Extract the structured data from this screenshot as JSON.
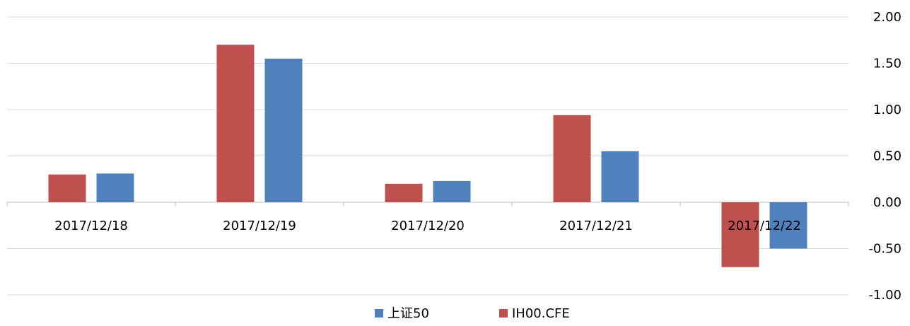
{
  "chart_data": {
    "type": "bar",
    "categories": [
      "2017/12/18",
      "2017/12/19",
      "2017/12/20",
      "2017/12/21",
      "2017/12/22"
    ],
    "series": [
      {
        "name": "上证50",
        "color": "#4f81bd",
        "values": [
          0.31,
          1.55,
          0.23,
          0.55,
          -0.5
        ]
      },
      {
        "name": "IH00.CFE",
        "color": "#c0504d",
        "values": [
          0.3,
          1.7,
          0.2,
          0.94,
          -0.7
        ]
      }
    ],
    "ylim": [
      -1,
      2
    ],
    "yticks": [
      {
        "value": -1,
        "label": "-1.00"
      },
      {
        "value": -0.5,
        "label": "-0.50"
      },
      {
        "value": 0,
        "label": "0.00"
      },
      {
        "value": 0.5,
        "label": "0.50"
      },
      {
        "value": 1,
        "label": "1.00"
      },
      {
        "value": 1.5,
        "label": "1.50"
      },
      {
        "value": 2,
        "label": "2.00"
      }
    ],
    "grid": true,
    "legend": "bottom"
  }
}
